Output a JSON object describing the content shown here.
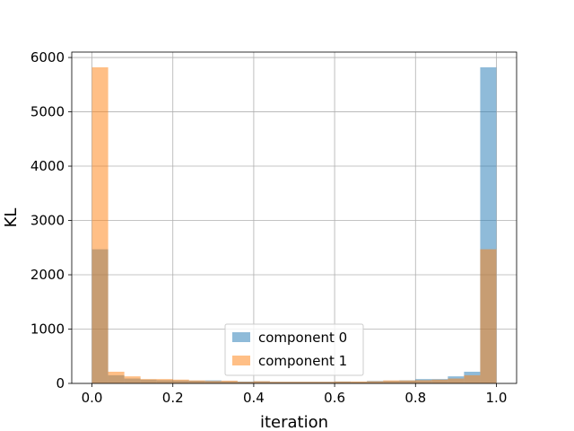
{
  "chart_data": {
    "type": "bar",
    "title": "",
    "xlabel": "iteration",
    "ylabel": "KL",
    "xlim": [
      -0.05,
      1.05
    ],
    "ylim": [
      0,
      6100
    ],
    "xticks": [
      "0.0",
      "0.2",
      "0.4",
      "0.6",
      "0.8",
      "1.0"
    ],
    "yticks": [
      "0",
      "1000",
      "2000",
      "3000",
      "4000",
      "5000",
      "6000"
    ],
    "grid": true,
    "legend_position": "lower-center",
    "bin_edges": [
      0.0,
      0.04,
      0.08,
      0.12,
      0.16,
      0.2,
      0.24,
      0.28,
      0.32,
      0.36,
      0.4,
      0.44,
      0.48,
      0.52,
      0.56,
      0.6,
      0.64,
      0.68,
      0.72,
      0.76,
      0.8,
      0.84,
      0.88,
      0.92,
      0.96,
      1.0
    ],
    "series": [
      {
        "name": "component 0",
        "color": "#1f77b4",
        "values": [
          2470,
          150,
          90,
          70,
          60,
          55,
          50,
          55,
          40,
          35,
          40,
          30,
          30,
          30,
          30,
          35,
          30,
          45,
          45,
          55,
          80,
          80,
          130,
          215,
          5820
        ]
      },
      {
        "name": "component 1",
        "color": "#ff7f0e",
        "values": [
          5820,
          215,
          130,
          80,
          80,
          70,
          55,
          45,
          50,
          30,
          40,
          30,
          30,
          30,
          30,
          35,
          35,
          40,
          55,
          55,
          60,
          70,
          90,
          150,
          2470
        ]
      }
    ]
  }
}
